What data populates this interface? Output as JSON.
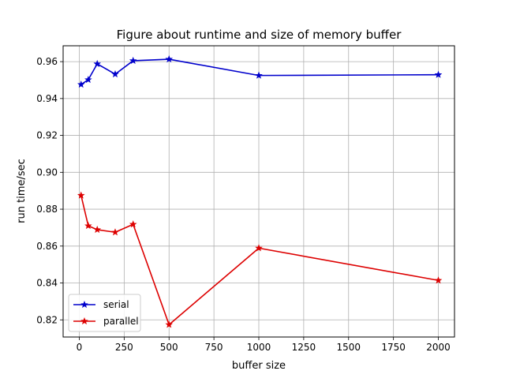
{
  "chart_data": {
    "type": "line",
    "title": "Figure about runtime and size of memory buffer",
    "xlabel": "buffer size",
    "ylabel": "run time/sec",
    "xlim": [
      -90,
      2090
    ],
    "ylim": [
      0.8107,
      0.9686
    ],
    "x_ticks": [
      0,
      250,
      500,
      750,
      1000,
      1250,
      1500,
      1750,
      2000
    ],
    "y_ticks": [
      0.82,
      0.84,
      0.86,
      0.88,
      0.9,
      0.92,
      0.94,
      0.96
    ],
    "x_tick_labels": [
      "0",
      "250",
      "500",
      "750",
      "1000",
      "1250",
      "1500",
      "1750",
      "2000"
    ],
    "y_tick_labels": [
      "0.82",
      "0.84",
      "0.86",
      "0.88",
      "0.90",
      "0.92",
      "0.94",
      "0.96"
    ],
    "grid": true,
    "legend_position": "lower-left",
    "marker": "star",
    "series": [
      {
        "name": "serial",
        "color": "#0000cc",
        "x": [
          10,
          50,
          100,
          200,
          300,
          500,
          1000,
          2000
        ],
        "y": [
          0.9476,
          0.9502,
          0.9588,
          0.9532,
          0.9605,
          0.9613,
          0.9525,
          0.9529
        ]
      },
      {
        "name": "parallel",
        "color": "#dd0000",
        "x": [
          10,
          50,
          100,
          200,
          300,
          500,
          1000,
          2000
        ],
        "y": [
          0.8875,
          0.871,
          0.8689,
          0.8675,
          0.8718,
          0.8174,
          0.8589,
          0.8414
        ]
      }
    ]
  }
}
